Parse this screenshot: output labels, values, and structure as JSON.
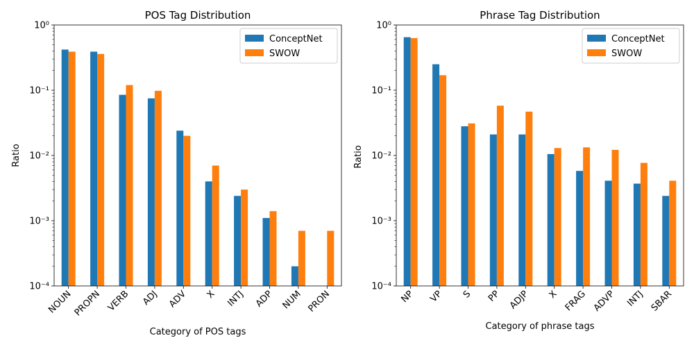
{
  "colors": {
    "conceptnet": "#1f77b4",
    "swow": "#ff7f0e"
  },
  "chart_data": [
    {
      "type": "bar",
      "title": "POS Tag Distribution",
      "xlabel": "Category of POS tags",
      "ylabel": "Ratio",
      "yscale": "log",
      "ylim": [
        0.0001,
        1
      ],
      "yticks": [
        "10⁻⁴",
        "10⁻³",
        "10⁻²",
        "10⁻¹",
        "10⁰"
      ],
      "legend_position": "top-right",
      "categories": [
        "NOUN",
        "PROPN",
        "VERB",
        "ADJ",
        "ADV",
        "X",
        "INTJ",
        "ADP",
        "NUM",
        "PRON"
      ],
      "series": [
        {
          "name": "ConceptNet",
          "values": [
            0.42,
            0.39,
            0.085,
            0.075,
            0.024,
            0.004,
            0.0024,
            0.0011,
            0.0002,
            null
          ]
        },
        {
          "name": "SWOW",
          "values": [
            0.39,
            0.36,
            0.12,
            0.098,
            0.02,
            0.007,
            0.003,
            0.0014,
            0.0007,
            0.0007
          ]
        }
      ]
    },
    {
      "type": "bar",
      "title": "Phrase Tag Distribution",
      "xlabel": "Category of phrase tags",
      "ylabel": "Ratio",
      "yscale": "log",
      "ylim": [
        0.0001,
        1
      ],
      "yticks": [
        "10⁻⁴",
        "10⁻³",
        "10⁻²",
        "10⁻¹",
        "10⁰"
      ],
      "legend_position": "top-right",
      "categories": [
        "NP",
        "VP",
        "S",
        "PP",
        "ADJP",
        "X",
        "FRAG",
        "ADVP",
        "INTJ",
        "SBAR"
      ],
      "series": [
        {
          "name": "ConceptNet",
          "values": [
            0.65,
            0.25,
            0.028,
            0.021,
            0.021,
            0.0105,
            0.0058,
            0.0041,
            0.0037,
            0.0024
          ]
        },
        {
          "name": "SWOW",
          "values": [
            0.63,
            0.17,
            0.031,
            0.058,
            0.047,
            0.013,
            0.0133,
            0.0122,
            0.0077,
            0.0041
          ]
        }
      ]
    }
  ]
}
